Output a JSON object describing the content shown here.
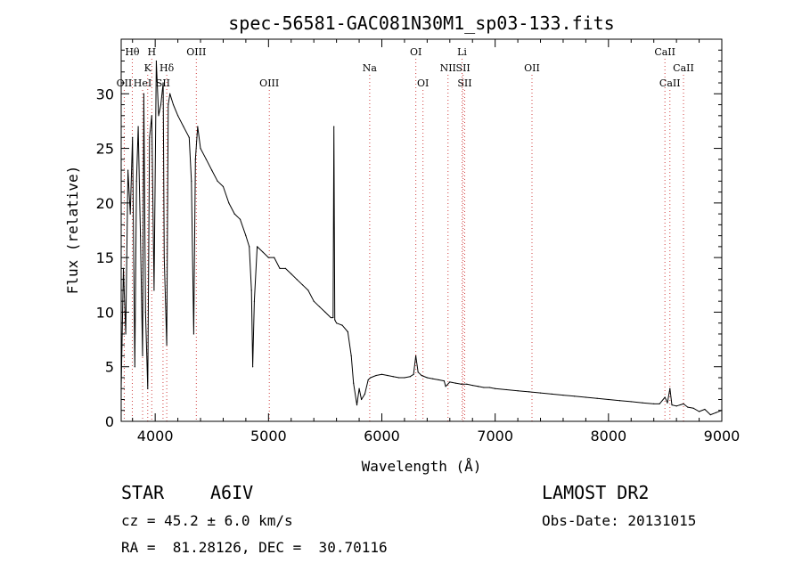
{
  "chart_data": {
    "type": "line",
    "title": "spec-56581-GAC081N30M1_sp03-133.fits",
    "xlabel": "Wavelength (Å)",
    "ylabel": "Flux (relative)",
    "xlim": [
      3700,
      9000
    ],
    "ylim": [
      0,
      35
    ],
    "x_ticks": [
      4000,
      5000,
      6000,
      7000,
      8000,
      9000
    ],
    "x_tick_labels": [
      "4000",
      "5000",
      "6000",
      "7000",
      "8000",
      "9000"
    ],
    "y_ticks": [
      0,
      5,
      10,
      15,
      20,
      25,
      30
    ],
    "y_tick_labels": [
      "0",
      "5",
      "10",
      "15",
      "20",
      "25",
      "30"
    ],
    "grid": false,
    "line_color": "#000000",
    "marker_color": "#d04040",
    "series": [
      {
        "x": [
          3700,
          3720,
          3740,
          3760,
          3780,
          3800,
          3820,
          3835,
          3850,
          3870,
          3889,
          3900,
          3915,
          3934,
          3950,
          3970,
          3990,
          4010,
          4030,
          4050,
          4070,
          4080,
          4102,
          4115,
          4130,
          4160,
          4200,
          4250,
          4300,
          4320,
          4340,
          4355,
          4375,
          4400,
          4450,
          4500,
          4550,
          4600,
          4650,
          4700,
          4750,
          4800,
          4830,
          4850,
          4861,
          4875,
          4900,
          4950,
          5000,
          5050,
          5100,
          5150,
          5200,
          5250,
          5300,
          5350,
          5400,
          5450,
          5500,
          5550,
          5570,
          5577,
          5585,
          5600,
          5650,
          5700,
          5730,
          5750,
          5780,
          5800,
          5820,
          5850,
          5880,
          5900,
          5950,
          6000,
          6050,
          6100,
          6150,
          6200,
          6250,
          6280,
          6300,
          6320,
          6350,
          6400,
          6450,
          6500,
          6550,
          6563,
          6600,
          6650,
          6700,
          6750,
          6800,
          6850,
          6900,
          6950,
          7000,
          7100,
          7200,
          7300,
          7400,
          7500,
          7600,
          7700,
          7800,
          7900,
          8000,
          8100,
          8200,
          8300,
          8400,
          8450,
          8498,
          8520,
          8542,
          8560,
          8600,
          8662,
          8700,
          8750,
          8800,
          8850,
          8900,
          8950,
          9000
        ],
        "y": [
          3,
          14,
          8,
          23,
          19,
          26,
          5,
          22,
          27,
          17,
          6,
          30,
          10,
          3,
          26,
          28,
          12,
          33,
          28,
          29,
          31,
          15,
          7,
          29,
          30,
          29,
          28,
          27,
          26,
          22,
          8,
          24,
          27,
          25,
          24,
          23,
          22,
          21.5,
          20,
          19,
          18.5,
          17,
          16,
          12,
          5,
          11,
          16,
          15.5,
          15,
          15,
          14,
          14,
          13.5,
          13,
          12.5,
          12,
          11,
          10.5,
          10,
          9.5,
          9.5,
          27,
          9.3,
          9,
          8.8,
          8.2,
          6,
          3.5,
          1.5,
          3,
          2,
          2.5,
          3.8,
          4,
          4.2,
          4.3,
          4.2,
          4.1,
          4,
          4,
          4.1,
          4.3,
          6,
          4.5,
          4.2,
          4,
          3.9,
          3.8,
          3.7,
          3.2,
          3.6,
          3.5,
          3.4,
          3.4,
          3.3,
          3.2,
          3.1,
          3.1,
          3,
          2.9,
          2.8,
          2.7,
          2.6,
          2.5,
          2.4,
          2.3,
          2.2,
          2.1,
          2,
          1.9,
          1.8,
          1.7,
          1.6,
          1.6,
          2.2,
          1.7,
          3,
          1.5,
          1.4,
          1.6,
          1.3,
          1.2,
          0.9,
          1.1,
          0.6,
          0.8,
          1.0
        ]
      }
    ],
    "line_markers": [
      {
        "label": "Hθ",
        "x": 3798,
        "row": 0
      },
      {
        "label": "H",
        "x": 3970,
        "row": 0
      },
      {
        "label": "OIII",
        "x": 4363,
        "row": 0
      },
      {
        "label": "OI",
        "x": 6300,
        "row": 0
      },
      {
        "label": "Li",
        "x": 6708,
        "row": 0
      },
      {
        "label": "CaII",
        "x": 8498,
        "row": 0
      },
      {
        "label": "K",
        "x": 3934,
        "row": 1
      },
      {
        "label": "Hδ",
        "x": 4102,
        "row": 1
      },
      {
        "label": "Na",
        "x": 5893,
        "row": 1
      },
      {
        "label": "NII",
        "x": 6584,
        "row": 1
      },
      {
        "label": "SII",
        "x": 6717,
        "row": 1
      },
      {
        "label": "OII",
        "x": 7325,
        "row": 1
      },
      {
        "label": "CaII",
        "x": 8662,
        "row": 1
      },
      {
        "label": "OII",
        "x": 3727,
        "row": 2
      },
      {
        "label": "HeI",
        "x": 3889,
        "row": 2
      },
      {
        "label": "SII",
        "x": 4069,
        "row": 2
      },
      {
        "label": "OIII",
        "x": 5007,
        "row": 2
      },
      {
        "label": "OI",
        "x": 6363,
        "row": 2
      },
      {
        "label": "SII",
        "x": 6731,
        "row": 2
      },
      {
        "label": "CaII",
        "x": 8542,
        "row": 2
      }
    ]
  },
  "info": {
    "object_type": "STAR",
    "subclass": "A6IV",
    "survey": "LAMOST DR2",
    "redshift": "cz = 45.2 ± 6.0 km/s",
    "obs_date": "Obs-Date: 20131015",
    "coords": "RA =  81.28126, DEC =  30.70116"
  }
}
